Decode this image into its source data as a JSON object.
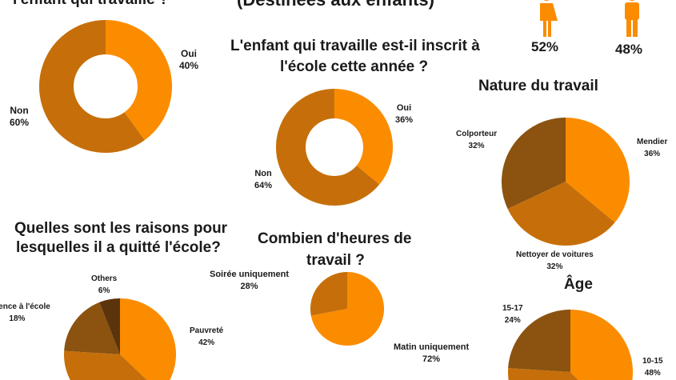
{
  "colors": {
    "c1": "#fb8c00",
    "c2": "#c66f0a",
    "c3": "#8c5210",
    "c4": "#5c340c"
  },
  "header": {
    "subtitle": "(Destinées aux enfants)",
    "female_pct": "52%",
    "male_pct": "48%"
  },
  "chart_data": [
    {
      "type": "pie",
      "donut": true,
      "title": "l'enfant qui travaille ?",
      "labels": [
        "Oui",
        "Non"
      ],
      "values": [
        40,
        60
      ],
      "value_labels": [
        "40%",
        "60%"
      ]
    },
    {
      "type": "pie",
      "donut": true,
      "title": "L'enfant qui travaille est-il inscrit à l'école cette année ?",
      "title_lines": [
        "L'enfant qui travaille est-il inscrit à",
        "l'école cette année ?"
      ],
      "labels": [
        "Oui",
        "Non"
      ],
      "values": [
        36,
        64
      ],
      "value_labels": [
        "36%",
        "64%"
      ]
    },
    {
      "type": "pie",
      "title": "Nature du travail",
      "labels": [
        "Mendier",
        "Nettoyer de voitures",
        "Colporteur"
      ],
      "values": [
        36,
        32,
        32
      ],
      "value_labels": [
        "36%",
        "32%",
        "32%"
      ]
    },
    {
      "type": "pie",
      "title": "Quelles sont les raisons pour lesquelles il a quitté l'école?",
      "title_lines": [
        "Quelles sont les raisons pour",
        "lesquelles il a quitté l'école?"
      ],
      "labels": [
        "Pauvreté",
        "",
        "Violence à l'école",
        "Others"
      ],
      "values": [
        42,
        34,
        18,
        6
      ],
      "value_labels": [
        "42%",
        "",
        "18%",
        "6%"
      ]
    },
    {
      "type": "pie",
      "title": "Combien d'heures de travail ?",
      "title_lines": [
        "Combien d'heures de",
        "travail ?"
      ],
      "labels": [
        "Matin uniquement",
        "Soirée uniquement"
      ],
      "values": [
        72,
        28
      ],
      "value_labels": [
        "72%",
        "28%"
      ]
    },
    {
      "type": "pie",
      "title": "Âge",
      "labels": [
        "10-15",
        "",
        "15-17"
      ],
      "values": [
        48,
        28,
        24
      ],
      "value_labels": [
        "48%",
        "",
        "24%"
      ]
    }
  ]
}
